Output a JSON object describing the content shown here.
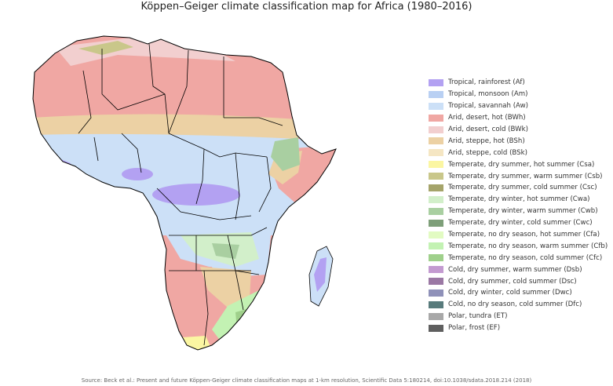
{
  "title": "Köppen–Geiger climate classification map for Africa (1980–2016)",
  "source": "Source: Beck et al.: Present and future Köppen-Geiger climate classification maps at 1-km resolution, Scientific Data 5:180214, doi:10.1038/sdata.2018.214 (2018)",
  "legend": [
    {
      "label": "Tropical, rainforest (Af)",
      "color": "#b3a1f2"
    },
    {
      "label": "Tropical, monsoon (Am)",
      "color": "#b9d0f3"
    },
    {
      "label": "Tropical, savannah (Aw)",
      "color": "#cce0f7"
    },
    {
      "label": "Arid, desert, hot (BWh)",
      "color": "#f0a7a3"
    },
    {
      "label": "Arid, desert, cold (BWk)",
      "color": "#f2cfcf"
    },
    {
      "label": "Arid, steppe, hot (BSh)",
      "color": "#ecd1a4"
    },
    {
      "label": "Arid, steppe, cold (BSk)",
      "color": "#f5e6c3"
    },
    {
      "label": "Temperate, dry summer, hot summer (Csa)",
      "color": "#fbf6a2"
    },
    {
      "label": "Temperate, dry summer, warm summer (Csb)",
      "color": "#c9c78a"
    },
    {
      "label": "Temperate, dry summer, cold summer (Csc)",
      "color": "#a5a46a"
    },
    {
      "label": "Temperate, dry winter, hot summer (Cwa)",
      "color": "#d2efca"
    },
    {
      "label": "Temperate, dry winter, warm summer (Cwb)",
      "color": "#a9cfa1"
    },
    {
      "label": "Temperate, dry winter, cold summer (Cwc)",
      "color": "#7e9f79"
    },
    {
      "label": "Temperate, no dry season, hot summer (Cfa)",
      "color": "#e2fbc2"
    },
    {
      "label": "Temperate, no dry season, warm summer (Cfb)",
      "color": "#c3f2b3"
    },
    {
      "label": "Temperate, no dry season, cold summer (Cfc)",
      "color": "#9fd08b"
    },
    {
      "label": "Cold, dry summer, warm summer (Dsb)",
      "color": "#c39ad0"
    },
    {
      "label": "Cold, dry summer, cold summer (Dsc)",
      "color": "#9b78a4"
    },
    {
      "label": "Cold, dry winter, cold summer (Dwc)",
      "color": "#8f91b9"
    },
    {
      "label": "Cold, no dry season, cold summer (Dfc)",
      "color": "#587b7c"
    },
    {
      "label": "Polar, tundra (ET)",
      "color": "#a8a8a8"
    },
    {
      "label": "Polar, frost (EF)",
      "color": "#5f5f5f"
    }
  ]
}
